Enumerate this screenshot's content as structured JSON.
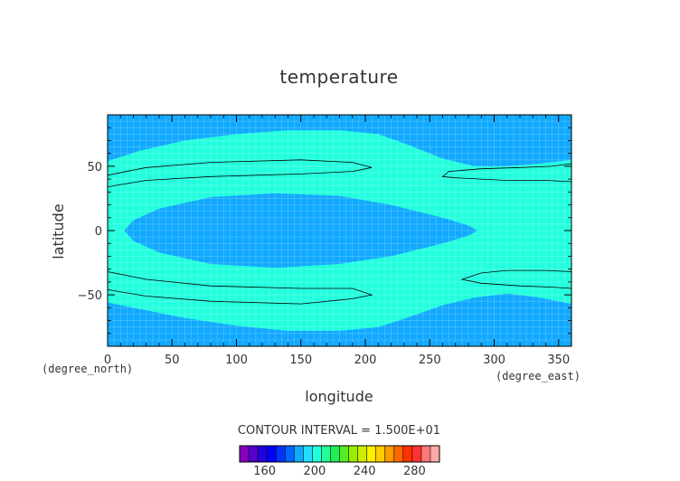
{
  "chart_data": {
    "type": "heatmap",
    "title": "temperature",
    "xlabel": "longitude",
    "ylabel": "latitude",
    "x_unit": "(degree_east)",
    "y_unit": "(degree_north)",
    "xlim": [
      0,
      360
    ],
    "ylim": [
      -90,
      90
    ],
    "x_ticks": [
      0,
      50,
      100,
      150,
      200,
      250,
      300,
      350
    ],
    "y_ticks": [
      -50,
      0,
      50
    ],
    "grid": true,
    "contour_interval_text": "CONTOUR INTERVAL = 1.500E+01",
    "fill_levels": [
      {
        "range": [
          190,
          205
        ],
        "color": "#11a9ff"
      },
      {
        "range": [
          205,
          220
        ],
        "color": "#22ffdd"
      }
    ],
    "colorbar": {
      "ticks": [
        160,
        200,
        240,
        280
      ],
      "min": 140,
      "max": 300,
      "colors": [
        "#8800bb",
        "#5500cc",
        "#2200dd",
        "#0000ff",
        "#0033ff",
        "#0066ff",
        "#11a9ff",
        "#22ddff",
        "#22ffdd",
        "#22ff99",
        "#22ee55",
        "#55ee22",
        "#99ee00",
        "#ccee00",
        "#ffee00",
        "#ffcc00",
        "#ff9900",
        "#ff6600",
        "#ff3300",
        "#ff3333",
        "#ff7777",
        "#ffaaaa"
      ]
    }
  }
}
